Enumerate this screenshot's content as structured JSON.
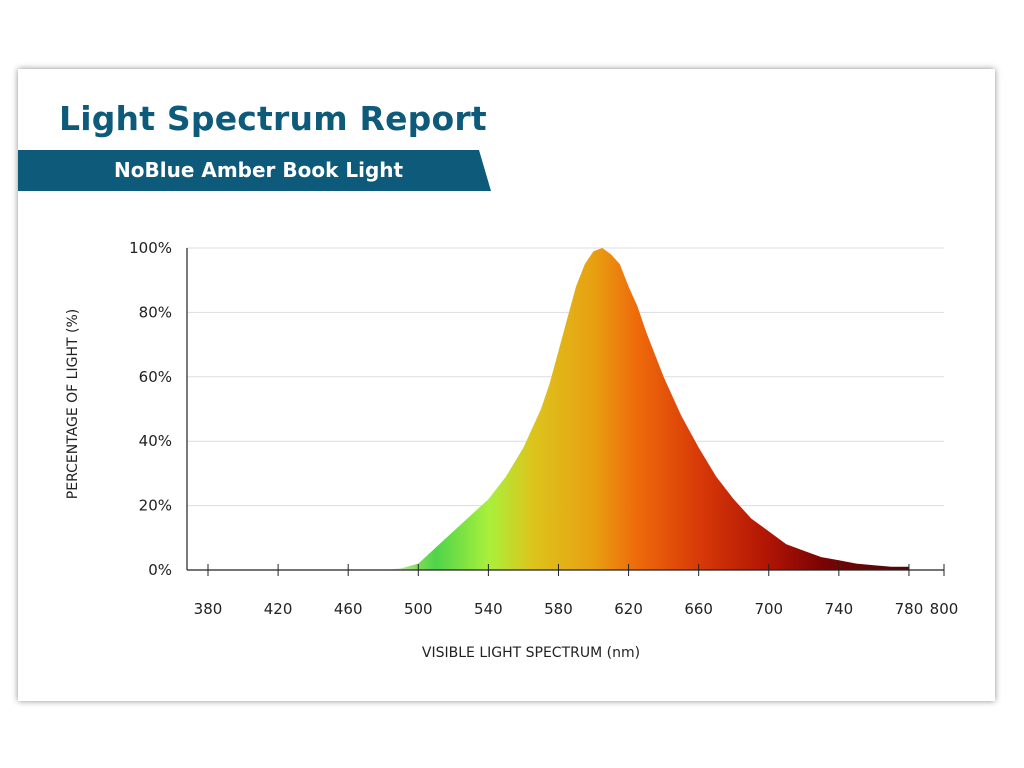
{
  "header": {
    "title": "Light Spectrum Report",
    "subtitle": "NoBlue Amber Book Light"
  },
  "colors": {
    "brand": "#0d5a7a",
    "gridline": "#dddddd",
    "axis": "#222222"
  },
  "chart_data": {
    "type": "area",
    "title": "Light Spectrum Report",
    "subtitle": "NoBlue Amber Book Light",
    "xlabel": "VISIBLE LIGHT SPECTRUM (nm)",
    "ylabel": "PERCENTAGE OF LIGHT (%)",
    "xlim": [
      380,
      800
    ],
    "ylim": [
      0,
      100
    ],
    "x_ticks": [
      380,
      420,
      460,
      500,
      540,
      580,
      620,
      660,
      700,
      740,
      780,
      800
    ],
    "y_ticks": [
      0,
      20,
      40,
      60,
      80,
      100
    ],
    "y_tick_suffix": "%",
    "grid": "horizontal",
    "series": [
      {
        "x": [
          480,
          490,
          500,
          510,
          520,
          530,
          540,
          550,
          560,
          570,
          575,
          580,
          585,
          590,
          595,
          600,
          605,
          610,
          615,
          620,
          625,
          630,
          640,
          650,
          660,
          670,
          680,
          690,
          700,
          710,
          720,
          730,
          740,
          750,
          760,
          770,
          780
        ],
        "y": [
          0,
          0.5,
          2,
          7,
          12,
          17,
          22,
          29,
          38,
          50,
          58,
          68,
          78,
          88,
          95,
          99,
          100,
          98,
          95,
          88,
          82,
          74,
          60,
          48,
          38,
          29,
          22,
          16,
          12,
          8,
          6,
          4,
          3,
          2,
          1.5,
          1,
          1
        ]
      }
    ],
    "gradient": [
      {
        "at": 480,
        "color": "#f5f5f5"
      },
      {
        "at": 500,
        "color": "#7ed957"
      },
      {
        "at": 510,
        "color": "#4fd44a"
      },
      {
        "at": 540,
        "color": "#a8f03c"
      },
      {
        "at": 565,
        "color": "#dcc41c"
      },
      {
        "at": 600,
        "color": "#e8a012"
      },
      {
        "at": 625,
        "color": "#ee6a0a"
      },
      {
        "at": 660,
        "color": "#d83a08"
      },
      {
        "at": 700,
        "color": "#b01404"
      },
      {
        "at": 730,
        "color": "#7a0404"
      },
      {
        "at": 780,
        "color": "#4a0a0a"
      }
    ]
  }
}
